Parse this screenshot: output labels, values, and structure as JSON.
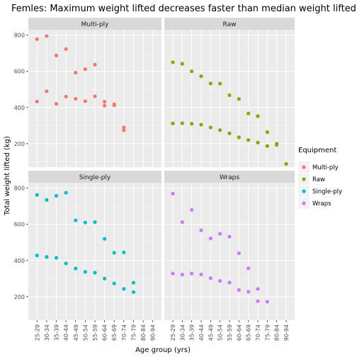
{
  "chart_data": {
    "type": "scatter",
    "title": "Femles: Maximum weight lifted decreases faster than median weight lifted",
    "xlabel": "Age group (yrs)",
    "ylabel": "Total weight lifted (kg)",
    "categories": [
      "25-29",
      "30-34",
      "35-39",
      "40-44",
      "45-49",
      "50-54",
      "55-59",
      "60-64",
      "65-69",
      "70-74",
      "75-79",
      "80-84",
      "90-94"
    ],
    "y_ticks": [
      200,
      400,
      600,
      800
    ],
    "ylim": [
      70,
      830
    ],
    "legend": {
      "title": "Equipment",
      "position": "right",
      "entries": [
        {
          "name": "Multi-ply",
          "color": "#F8766D"
        },
        {
          "name": "Raw",
          "color": "#7CAE00"
        },
        {
          "name": "Single-ply",
          "color": "#00BFC4"
        },
        {
          "name": "Wraps",
          "color": "#C77CFF"
        }
      ]
    },
    "facets": [
      {
        "label": "Multi-ply",
        "color": "#F8766D",
        "points": [
          {
            "x": "25-29",
            "y": 778
          },
          {
            "x": "30-34",
            "y": 795
          },
          {
            "x": "35-39",
            "y": 688
          },
          {
            "x": "40-44",
            "y": 723
          },
          {
            "x": "45-49",
            "y": 593
          },
          {
            "x": "50-54",
            "y": 612
          },
          {
            "x": "55-59",
            "y": 637
          },
          {
            "x": "25-29",
            "y": 433
          },
          {
            "x": "30-34",
            "y": 490
          },
          {
            "x": "35-39",
            "y": 420
          },
          {
            "x": "40-44",
            "y": 460
          },
          {
            "x": "45-49",
            "y": 448
          },
          {
            "x": "50-54",
            "y": 435
          },
          {
            "x": "55-59",
            "y": 462
          },
          {
            "x": "60-64",
            "y": 432
          },
          {
            "x": "60-64",
            "y": 410
          },
          {
            "x": "65-69",
            "y": 418
          },
          {
            "x": "65-69",
            "y": 412
          },
          {
            "x": "70-74",
            "y": 290
          },
          {
            "x": "70-74",
            "y": 274
          }
        ]
      },
      {
        "label": "Raw",
        "color": "#7CAE00",
        "points": [
          {
            "x": "25-29",
            "y": 650
          },
          {
            "x": "30-34",
            "y": 642
          },
          {
            "x": "35-39",
            "y": 600
          },
          {
            "x": "40-44",
            "y": 573
          },
          {
            "x": "45-49",
            "y": 533
          },
          {
            "x": "50-54",
            "y": 532
          },
          {
            "x": "55-59",
            "y": 468
          },
          {
            "x": "60-64",
            "y": 447
          },
          {
            "x": "65-69",
            "y": 367
          },
          {
            "x": "70-74",
            "y": 352
          },
          {
            "x": "75-79",
            "y": 264
          },
          {
            "x": "80-84",
            "y": 200
          },
          {
            "x": "25-29",
            "y": 312
          },
          {
            "x": "30-34",
            "y": 313
          },
          {
            "x": "35-39",
            "y": 310
          },
          {
            "x": "40-44",
            "y": 305
          },
          {
            "x": "45-49",
            "y": 290
          },
          {
            "x": "50-54",
            "y": 275
          },
          {
            "x": "55-59",
            "y": 257
          },
          {
            "x": "60-64",
            "y": 235
          },
          {
            "x": "65-69",
            "y": 220
          },
          {
            "x": "70-74",
            "y": 206
          },
          {
            "x": "75-79",
            "y": 187
          },
          {
            "x": "80-84",
            "y": 193
          },
          {
            "x": "90-94",
            "y": 88
          }
        ]
      },
      {
        "label": "Single-ply",
        "color": "#00BFC4",
        "points": [
          {
            "x": "25-29",
            "y": 763
          },
          {
            "x": "30-34",
            "y": 735
          },
          {
            "x": "35-39",
            "y": 758
          },
          {
            "x": "40-44",
            "y": 775
          },
          {
            "x": "45-49",
            "y": 622
          },
          {
            "x": "50-54",
            "y": 610
          },
          {
            "x": "55-59",
            "y": 612
          },
          {
            "x": "60-64",
            "y": 520
          },
          {
            "x": "65-69",
            "y": 443
          },
          {
            "x": "70-74",
            "y": 445
          },
          {
            "x": "75-79",
            "y": 277
          },
          {
            "x": "25-29",
            "y": 428
          },
          {
            "x": "30-34",
            "y": 420
          },
          {
            "x": "35-39",
            "y": 415
          },
          {
            "x": "40-44",
            "y": 384
          },
          {
            "x": "45-49",
            "y": 356
          },
          {
            "x": "50-54",
            "y": 337
          },
          {
            "x": "55-59",
            "y": 333
          },
          {
            "x": "60-64",
            "y": 300
          },
          {
            "x": "65-69",
            "y": 273
          },
          {
            "x": "70-74",
            "y": 243
          },
          {
            "x": "75-79",
            "y": 225
          }
        ]
      },
      {
        "label": "Wraps",
        "color": "#C77CFF",
        "points": [
          {
            "x": "25-29",
            "y": 770
          },
          {
            "x": "30-34",
            "y": 612
          },
          {
            "x": "35-39",
            "y": 680
          },
          {
            "x": "40-44",
            "y": 567
          },
          {
            "x": "45-49",
            "y": 522
          },
          {
            "x": "50-54",
            "y": 548
          },
          {
            "x": "55-59",
            "y": 532
          },
          {
            "x": "60-64",
            "y": 440
          },
          {
            "x": "65-69",
            "y": 357
          },
          {
            "x": "70-74",
            "y": 243
          },
          {
            "x": "25-29",
            "y": 328
          },
          {
            "x": "30-34",
            "y": 322
          },
          {
            "x": "35-39",
            "y": 328
          },
          {
            "x": "40-44",
            "y": 323
          },
          {
            "x": "45-49",
            "y": 302
          },
          {
            "x": "50-54",
            "y": 287
          },
          {
            "x": "55-59",
            "y": 278
          },
          {
            "x": "60-64",
            "y": 237
          },
          {
            "x": "65-69",
            "y": 227
          },
          {
            "x": "70-74",
            "y": 175
          },
          {
            "x": "75-79",
            "y": 172
          }
        ]
      }
    ]
  }
}
